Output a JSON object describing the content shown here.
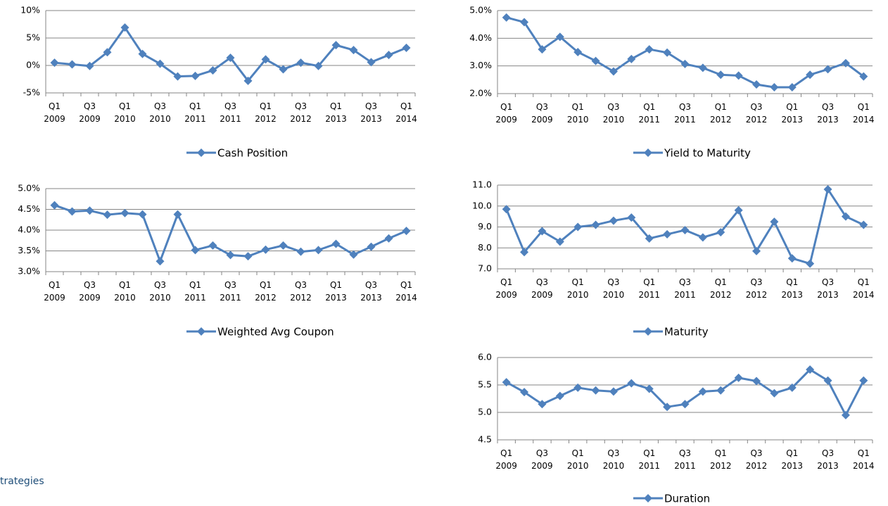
{
  "chart_data": [
    {
      "type": "line",
      "categories": [
        "Q1 2009",
        null,
        "Q3 2009",
        null,
        "Q1 2010",
        null,
        "Q3 2010",
        null,
        "Q1 2011",
        null,
        "Q3 2011",
        null,
        "Q1 2012",
        null,
        "Q3 2012",
        null,
        "Q1 2013",
        null,
        "Q3 2013",
        null,
        "Q1 2014"
      ],
      "series": [
        {
          "name": "Cash Position",
          "color": "#4f81bd",
          "values": [
            0.5,
            0.2,
            -0.1,
            2.4,
            6.9,
            2.1,
            0.3,
            -2.0,
            -1.9,
            -0.9,
            1.4,
            -2.8,
            1.1,
            -0.7,
            0.5,
            -0.1,
            3.7,
            2.8,
            0.6,
            1.9,
            3.2
          ]
        }
      ],
      "ylim": [
        -5,
        10
      ],
      "yticks": [
        {
          "value": -5,
          "label": "-5%"
        },
        {
          "value": 0,
          "label": "0%"
        },
        {
          "value": 5,
          "label": "5%"
        },
        {
          "value": 10,
          "label": "10%"
        }
      ],
      "grid": true,
      "legend": "bottom"
    },
    {
      "type": "line",
      "categories": [
        "Q1 2009",
        null,
        "Q3 2009",
        null,
        "Q1 2010",
        null,
        "Q3 2010",
        null,
        "Q1 2011",
        null,
        "Q3 2011",
        null,
        "Q1 2012",
        null,
        "Q3 2012",
        null,
        "Q1 2013",
        null,
        "Q3 2013",
        null,
        "Q1 2014"
      ],
      "series": [
        {
          "name": "Yield to Maturity",
          "color": "#4f81bd",
          "values": [
            4.75,
            4.58,
            3.6,
            4.05,
            3.5,
            3.18,
            2.8,
            3.25,
            3.6,
            3.48,
            3.07,
            2.93,
            2.68,
            2.65,
            2.33,
            2.23,
            2.23,
            2.68,
            2.88,
            3.1,
            2.62
          ]
        }
      ],
      "ylim": [
        2,
        5
      ],
      "yticks": [
        {
          "value": 2,
          "label": "2.0%"
        },
        {
          "value": 3,
          "label": "3.0%"
        },
        {
          "value": 4,
          "label": "4.0%"
        },
        {
          "value": 5,
          "label": "5.0%"
        }
      ],
      "grid": true,
      "legend": "bottom"
    },
    {
      "type": "line",
      "categories": [
        "Q1 2009",
        null,
        "Q3 2009",
        null,
        "Q1 2010",
        null,
        "Q3 2010",
        null,
        "Q1 2011",
        null,
        "Q3 2011",
        null,
        "Q1 2012",
        null,
        "Q3 2012",
        null,
        "Q1 2013",
        null,
        "Q3 2013",
        null,
        "Q1 2014"
      ],
      "series": [
        {
          "name": "Weighted Avg Coupon",
          "color": "#4f81bd",
          "values": [
            4.6,
            4.45,
            4.47,
            4.37,
            4.41,
            4.38,
            3.25,
            4.38,
            3.52,
            3.63,
            3.4,
            3.37,
            3.53,
            3.63,
            3.48,
            3.52,
            3.67,
            3.41,
            3.6,
            3.8,
            3.98
          ]
        }
      ],
      "ylim": [
        3,
        5
      ],
      "yticks": [
        {
          "value": 3,
          "label": "3.0%"
        },
        {
          "value": 3.5,
          "label": "3.5%"
        },
        {
          "value": 4,
          "label": "4.0%"
        },
        {
          "value": 4.5,
          "label": "4.5%"
        },
        {
          "value": 5,
          "label": "5.0%"
        }
      ],
      "grid": true,
      "legend": "bottom"
    },
    {
      "type": "line",
      "categories": [
        "Q1 2009",
        null,
        "Q3 2009",
        null,
        "Q1 2010",
        null,
        "Q3 2010",
        null,
        "Q1 2011",
        null,
        "Q3 2011",
        null,
        "Q1 2012",
        null,
        "Q3 2012",
        null,
        "Q1 2013",
        null,
        "Q3 2013",
        null,
        "Q1 2014"
      ],
      "series": [
        {
          "name": "Maturity",
          "color": "#4f81bd",
          "values": [
            9.85,
            7.8,
            8.8,
            8.3,
            9.0,
            9.1,
            9.3,
            9.45,
            8.45,
            8.65,
            8.85,
            8.5,
            8.75,
            9.8,
            7.85,
            9.25,
            7.5,
            7.25,
            10.8,
            9.5,
            9.1
          ]
        }
      ],
      "ylim": [
        7,
        11
      ],
      "yticks": [
        {
          "value": 7,
          "label": "7.0"
        },
        {
          "value": 8,
          "label": "8.0"
        },
        {
          "value": 9,
          "label": "9.0"
        },
        {
          "value": 10,
          "label": "10.0"
        },
        {
          "value": 11,
          "label": "11.0"
        }
      ],
      "grid": true,
      "legend": "bottom"
    },
    {
      "type": "line",
      "categories": [
        "Q1 2009",
        null,
        "Q3 2009",
        null,
        "Q1 2010",
        null,
        "Q3 2010",
        null,
        "Q1 2011",
        null,
        "Q3 2011",
        null,
        "Q1 2012",
        null,
        "Q3 2012",
        null,
        "Q1 2013",
        null,
        "Q3 2013",
        null,
        "Q1 2014"
      ],
      "series": [
        {
          "name": "Duration",
          "color": "#4f81bd",
          "values": [
            5.55,
            5.37,
            5.15,
            5.3,
            5.45,
            5.4,
            5.38,
            5.53,
            5.43,
            5.1,
            5.15,
            5.38,
            5.4,
            5.63,
            5.57,
            5.35,
            5.45,
            5.78,
            5.58,
            4.95,
            5.58
          ]
        }
      ],
      "ylim": [
        4.5,
        6
      ],
      "yticks": [
        {
          "value": 4.5,
          "label": "4.5"
        },
        {
          "value": 5,
          "label": "5.0"
        },
        {
          "value": 5.5,
          "label": "5.5"
        },
        {
          "value": 6,
          "label": "6.0"
        }
      ],
      "grid": true,
      "legend": "bottom"
    }
  ],
  "footer": "trategies"
}
